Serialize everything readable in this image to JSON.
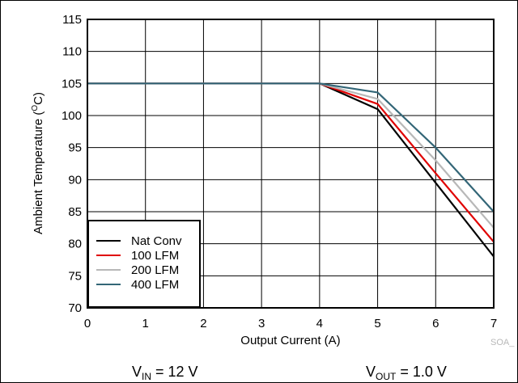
{
  "chart_data": {
    "type": "line",
    "xlabel": "Output Current (A)",
    "ylabel_main": "Ambient Temperature (",
    "ylabel_sup": "O",
    "ylabel_end": "C)",
    "xlim": [
      0,
      7
    ],
    "ylim": [
      70,
      115
    ],
    "x_ticks": [
      0,
      1,
      2,
      3,
      4,
      5,
      6,
      7
    ],
    "y_ticks": [
      70,
      75,
      80,
      85,
      90,
      95,
      100,
      105,
      110,
      115
    ],
    "grid": true,
    "legend_position": "bottom-left",
    "series": [
      {
        "name": "Nat Conv",
        "color": "#000000",
        "x": [
          0,
          4,
          5,
          6,
          7
        ],
        "y": [
          105,
          105,
          101,
          89.5,
          78
        ]
      },
      {
        "name": "100 LFM",
        "color": "#e00000",
        "x": [
          0,
          4,
          5,
          6,
          7
        ],
        "y": [
          105,
          105,
          101.8,
          91,
          80.3
        ]
      },
      {
        "name": "200 LFM",
        "color": "#b8b8b8",
        "x": [
          0,
          4,
          5,
          6,
          7
        ],
        "y": [
          105,
          105,
          102.6,
          93,
          82.5
        ]
      },
      {
        "name": "400 LFM",
        "color": "#336677",
        "x": [
          0,
          4,
          5,
          6,
          7
        ],
        "y": [
          105,
          105,
          103.6,
          95,
          85
        ]
      }
    ],
    "watermark": "SOA_"
  },
  "conditions": {
    "vin_main": "V",
    "vin_sub": "IN",
    "vin_rest": " = 12 V",
    "vout_main": "V",
    "vout_sub": "OUT",
    "vout_rest": " = 1.0 V"
  }
}
